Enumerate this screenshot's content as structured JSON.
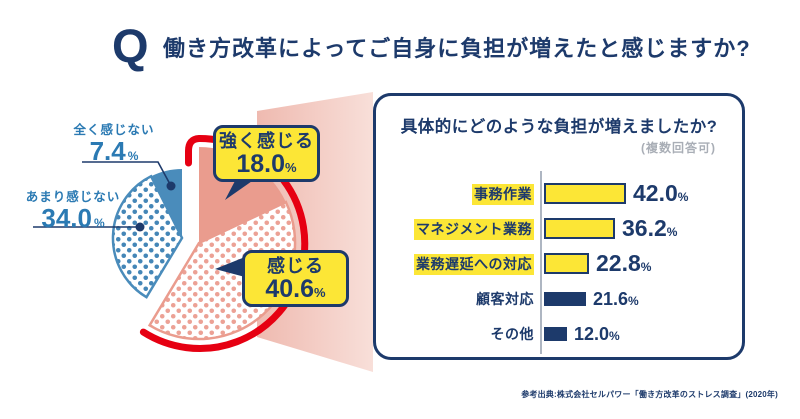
{
  "header": {
    "q_mark": "Q",
    "title": "働き方改革によってご自身に負担が増えたと感じますか?"
  },
  "footer": {
    "source": "参考出典:株式会社セルパワー「働き方改革のストレス調査」(2020年)"
  },
  "colors": {
    "navy": "#1D3A6B",
    "red_highlight": "#E60012",
    "yellow": "#FCE636",
    "salmon": "#EA9C8E",
    "blue": "#4A8CBB",
    "blue_label_text": "#2B7AB3",
    "axis_gray": "#AEB6C2",
    "subtitle_gray": "#A9AEB6"
  },
  "chart_data": [
    {
      "type": "pie",
      "question": "働き方改革によってご自身に負担が増えたと感じますか?",
      "unit": "%",
      "order": "clockwise from 12 o'clock",
      "slices": [
        {
          "label": "強く感じる",
          "value": 18.0,
          "display": "18.0",
          "style": "salmon-solid",
          "callout": true
        },
        {
          "label": "感じる",
          "value": 40.6,
          "display": "40.6",
          "style": "salmon-dotted",
          "callout": true
        },
        {
          "label": "あまり感じない",
          "value": 34.0,
          "display": "34.0",
          "style": "blue-dotted",
          "callout": false
        },
        {
          "label": "全く感じない",
          "value": 7.4,
          "display": "7.4",
          "style": "blue-solid",
          "callout": false
        }
      ],
      "highlight_note": "強く感じる+感じる (58.6%) exploded right and outlined with thick red arc"
    },
    {
      "type": "bar",
      "title": "具体的にどのような負担が増えましたか?",
      "subtitle": "(複数回答可)",
      "unit": "%",
      "categories": [
        "事務作業",
        "マネジメント業務",
        "業務遅延への対応",
        "顧客対応",
        "その他"
      ],
      "values": [
        42.0,
        36.2,
        22.8,
        21.6,
        12.0
      ],
      "displays": [
        "42.0",
        "36.2",
        "22.8",
        "21.6",
        "12.0"
      ],
      "highlighted": [
        true,
        true,
        true,
        false,
        false
      ],
      "xlim": [
        0,
        50
      ],
      "grid": false,
      "legend": "none"
    }
  ]
}
